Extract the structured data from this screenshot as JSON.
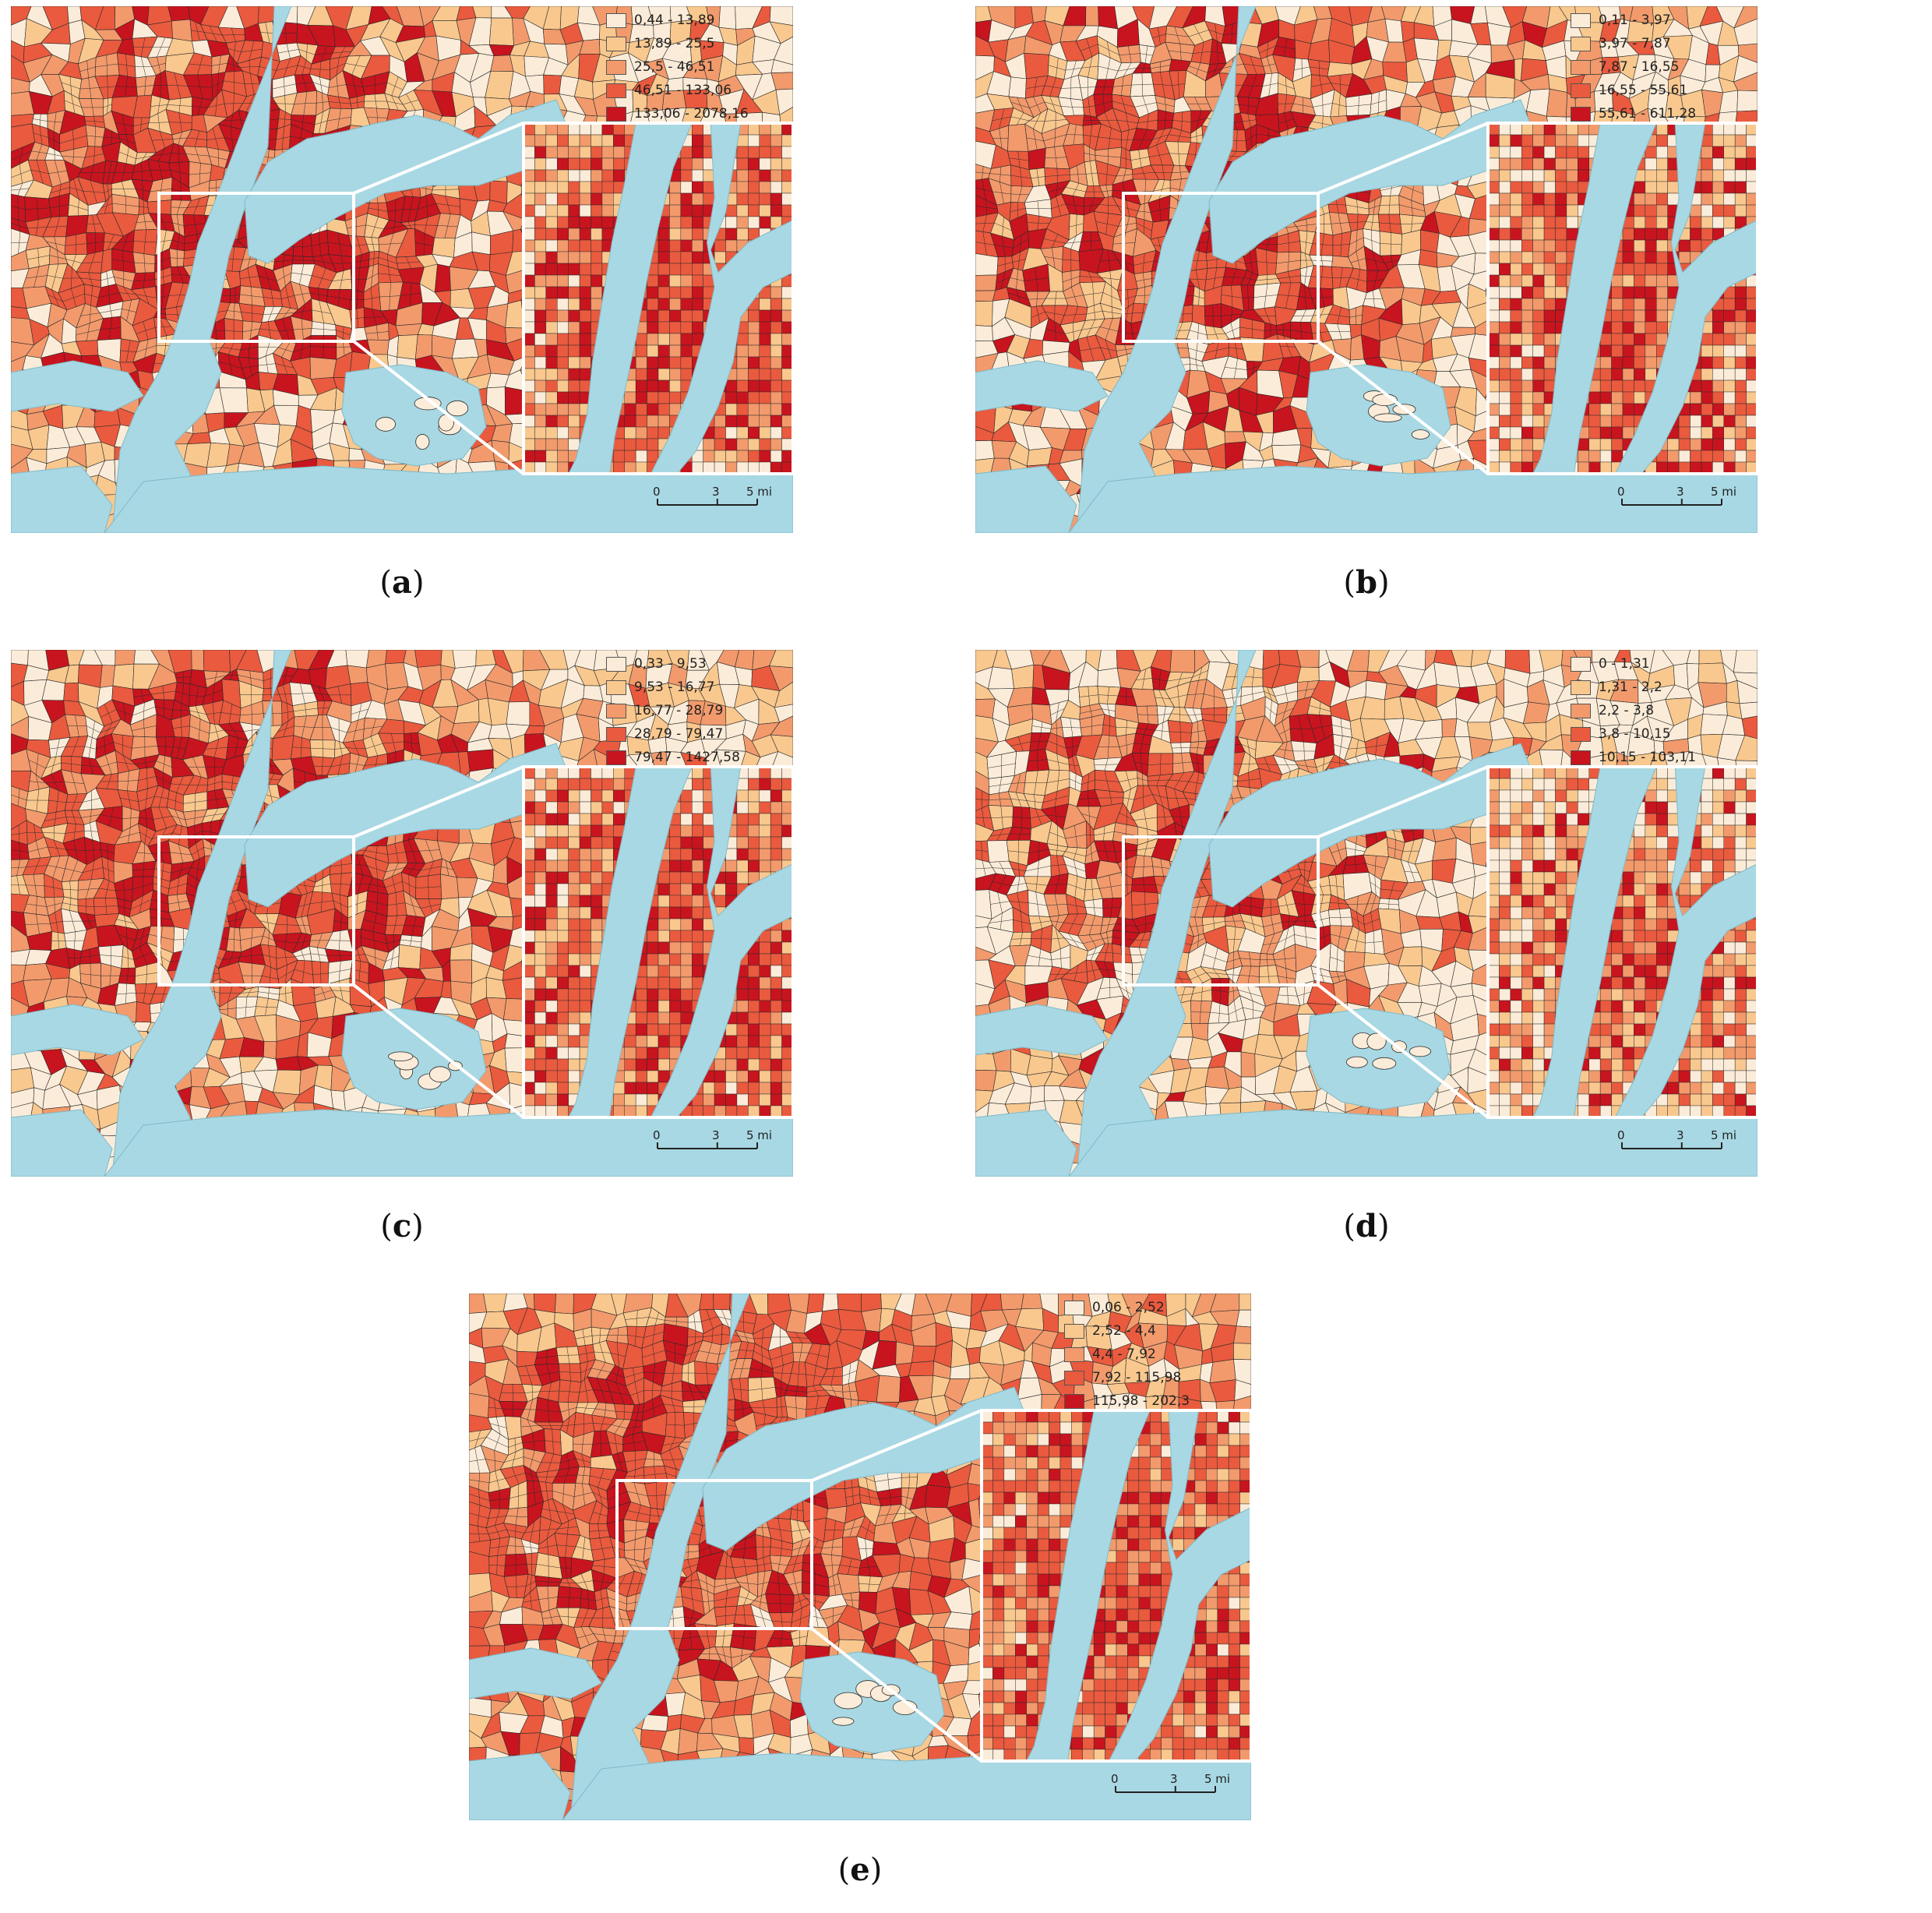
{
  "colors": {
    "water": "#a8d8e3",
    "class_1": "#fbecd9",
    "class_2": "#f9c88e",
    "class_3": "#f29a6c",
    "class_4": "#ea5a3e",
    "class_5": "#c8141e",
    "outline": "#2b2b2b",
    "inset_border": "#ffffff"
  },
  "scale_bar": {
    "labels": [
      "0",
      "3",
      "5 mi"
    ]
  },
  "panels": [
    {
      "caption": "a",
      "legend": [
        "0,44 - 13,89",
        "13,89 - 25,5",
        "25,5 - 46,51",
        "46,51 - 133,06",
        "133,06 - 2078,16"
      ]
    },
    {
      "caption": "b",
      "legend": [
        "0,11 - 3,97",
        "3,97 - 7,87",
        "7,87 - 16,55",
        "16,55 - 55,61",
        "55,61 - 611,28"
      ]
    },
    {
      "caption": "c",
      "legend": [
        "0,33 - 9,53",
        "9,53 - 16,77",
        "16,77 - 28,79",
        "28,79 - 79,47",
        "79,47 - 1427,58"
      ]
    },
    {
      "caption": "d",
      "legend": [
        "0 - 1,31",
        "1,31 - 2,2",
        "2,2 - 3,8",
        "3,8 - 10,15",
        "10,15 - 103,11"
      ]
    },
    {
      "caption": "e",
      "legend": [
        "0,06 - 2,52",
        "2,52 - 4,4",
        "4,4 - 7,92",
        "7,92 - 115,98",
        "115,98 - 202,3"
      ]
    }
  ]
}
